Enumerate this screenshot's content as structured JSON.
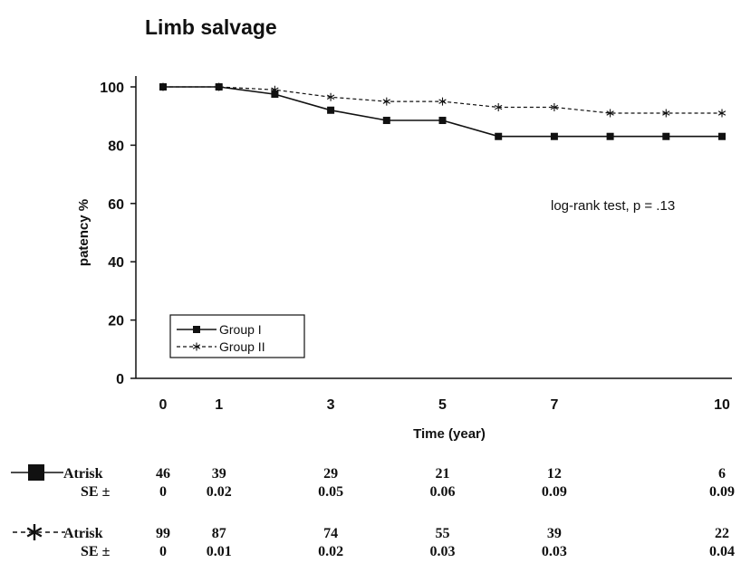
{
  "chart_data": {
    "type": "line",
    "title": "Limb salvage",
    "xlabel": "Time (year)",
    "ylabel": "patency %",
    "xlim": [
      0,
      10
    ],
    "ylim": [
      0,
      100
    ],
    "xticks": [
      0,
      1,
      3,
      5,
      7,
      10
    ],
    "yticks": [
      0,
      20,
      40,
      60,
      80,
      100
    ],
    "grid": false,
    "legend_position": "bottom-left",
    "annotation": "log-rank test, p = .13",
    "series": [
      {
        "name": "Group I",
        "style": "solid",
        "marker": "square",
        "color": "#111111",
        "x": [
          0,
          1,
          2,
          3,
          4,
          5,
          6,
          7,
          8,
          9,
          10
        ],
        "y": [
          100,
          100,
          97.5,
          92,
          88.5,
          88.5,
          83,
          83,
          83,
          83,
          83
        ]
      },
      {
        "name": "Group II",
        "style": "dashed",
        "marker": "star",
        "color": "#111111",
        "x": [
          0,
          1,
          2,
          3,
          4,
          5,
          6,
          7,
          8,
          9,
          10
        ],
        "y": [
          100,
          100,
          99,
          96.5,
          95,
          95,
          93,
          93,
          91,
          91,
          91
        ]
      }
    ],
    "risk_table": {
      "timepoints": [
        0,
        1,
        3,
        5,
        7,
        10
      ],
      "row_labels": {
        "at_risk": "Atrisk",
        "se": "SE ±"
      },
      "groups": [
        {
          "marker": "square",
          "at_risk": [
            "46",
            "39",
            "29",
            "21",
            "12",
            "6"
          ],
          "se": [
            "0",
            "0.02",
            "0.05",
            "0.06",
            "0.09",
            "0.09"
          ]
        },
        {
          "marker": "star",
          "at_risk": [
            "99",
            "87",
            "74",
            "55",
            "39",
            "22"
          ],
          "se": [
            "0",
            "0.01",
            "0.02",
            "0.03",
            "0.03",
            "0.04"
          ]
        }
      ]
    }
  }
}
